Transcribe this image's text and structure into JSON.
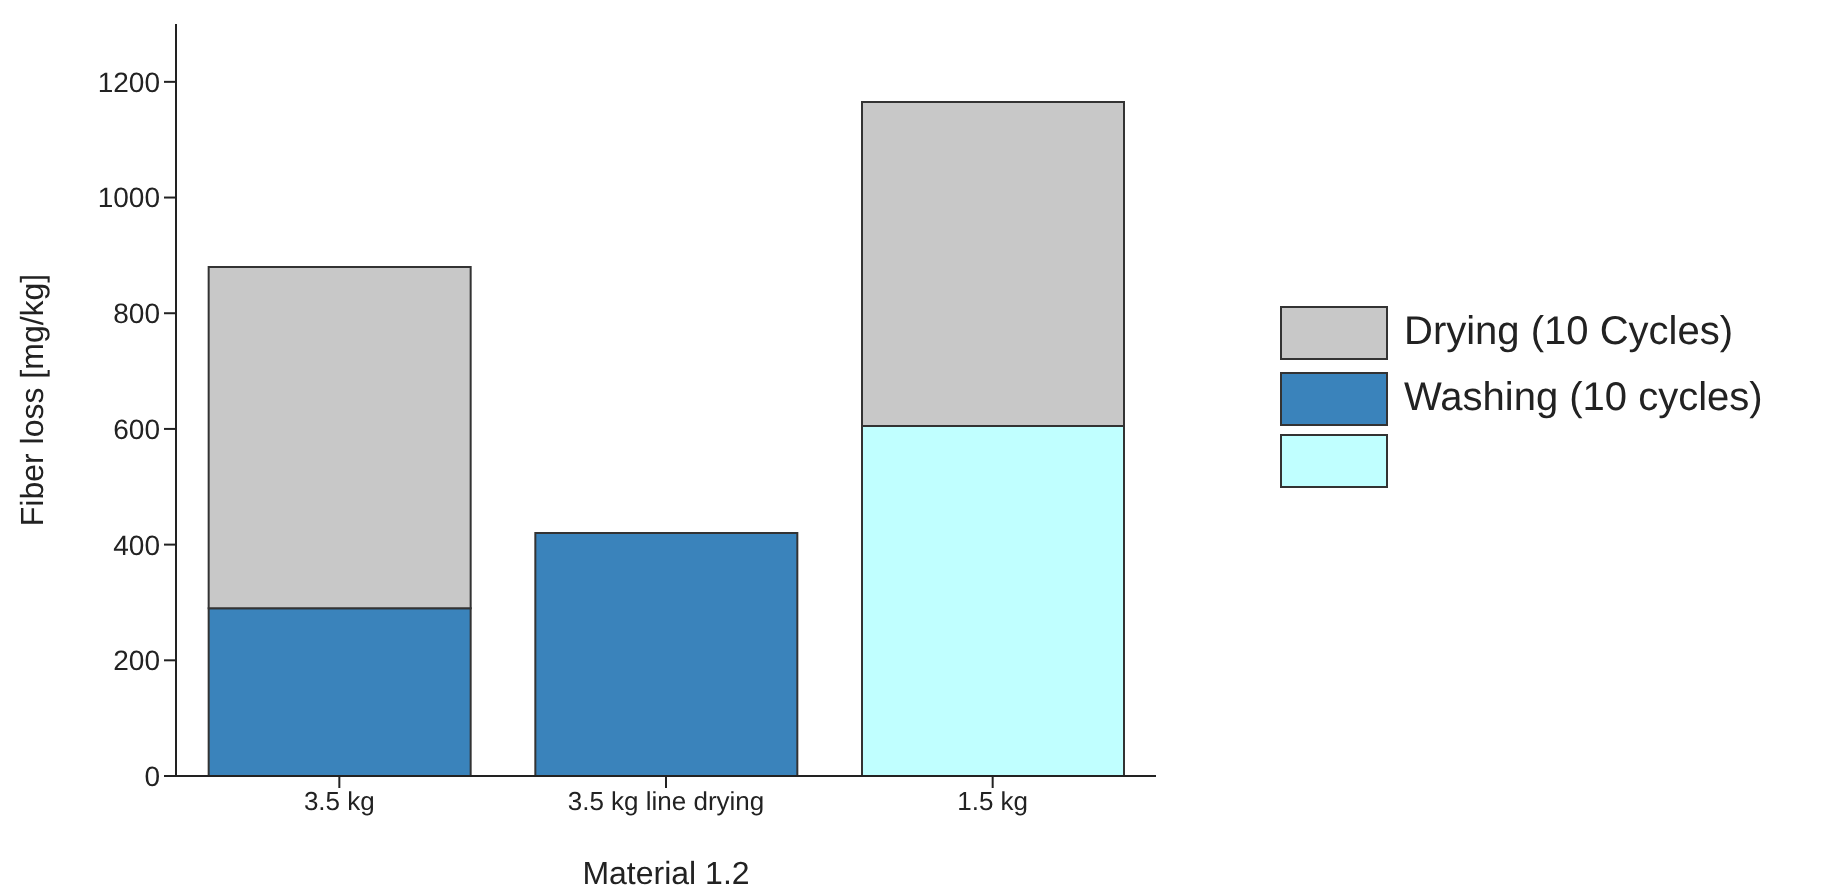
{
  "chart_data": {
    "type": "bar",
    "stacked": true,
    "xlabel": "Material 1.2",
    "ylabel": "Fiber loss [mg/kg]",
    "categories": [
      "3.5 kg",
      "3.5 kg line drying",
      "1.5 kg"
    ],
    "series": [
      {
        "name": "Washing (10 cycles)",
        "colors": [
          "#3a83bb",
          "#3a83bb",
          "#c0ffff"
        ],
        "values": [
          290,
          420,
          605
        ]
      },
      {
        "name": "Drying (10 Cycles)",
        "color": "#c8c8c8",
        "values": [
          590,
          null,
          560
        ]
      }
    ],
    "ylim": [
      0,
      1300
    ],
    "yticks": [
      0,
      200,
      400,
      600,
      800,
      1000,
      1200
    ],
    "grid": false,
    "legend": "right"
  }
}
